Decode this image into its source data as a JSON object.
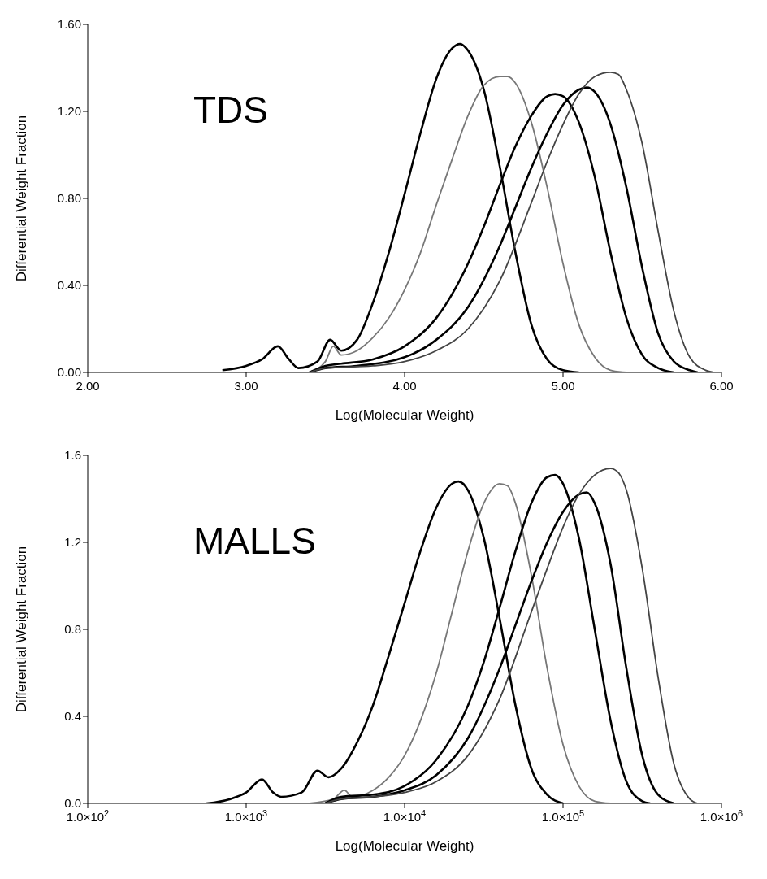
{
  "chart_data": [
    {
      "type": "line",
      "xlabel": "Log(Molecular Weight)",
      "ylabel": "Differential Weight Fraction",
      "annotations": [
        "TDS"
      ],
      "xlim": [
        2,
        6
      ],
      "ylim": [
        0,
        1.6
      ],
      "xticks": [
        {
          "value": 2,
          "label": "2.00"
        },
        {
          "value": 3,
          "label": "3.00"
        },
        {
          "value": 4,
          "label": "4.00"
        },
        {
          "value": 5,
          "label": "5.00"
        },
        {
          "value": 6,
          "label": "6.00"
        }
      ],
      "yticks": [
        {
          "value": 0,
          "label": "0.00"
        },
        {
          "value": 0.4,
          "label": "0.40"
        },
        {
          "value": 0.8,
          "label": "0.80"
        },
        {
          "value": 1.2,
          "label": "1.20"
        },
        {
          "value": 1.6,
          "label": "1.60"
        }
      ],
      "grid": false,
      "marker": "none",
      "line_style": "solid",
      "series": [
        {
          "color": "#000000",
          "x": [
            2.85,
            3.0,
            3.1,
            3.2,
            3.27,
            3.33,
            3.45,
            3.53,
            3.6,
            3.7,
            3.8,
            3.9,
            4.0,
            4.1,
            4.2,
            4.3,
            4.35,
            4.4,
            4.5,
            4.6,
            4.7,
            4.8,
            4.9,
            5.0,
            5.1
          ],
          "values": [
            0.01,
            0.03,
            0.06,
            0.12,
            0.06,
            0.02,
            0.05,
            0.15,
            0.1,
            0.15,
            0.32,
            0.55,
            0.82,
            1.1,
            1.35,
            1.49,
            1.51,
            1.48,
            1.3,
            0.95,
            0.55,
            0.22,
            0.06,
            0.01,
            0.0
          ]
        },
        {
          "color": "#777777",
          "x": [
            3.4,
            3.5,
            3.55,
            3.6,
            3.7,
            3.8,
            3.9,
            4.0,
            4.1,
            4.2,
            4.3,
            4.4,
            4.5,
            4.6,
            4.65,
            4.7,
            4.8,
            4.9,
            5.0,
            5.1,
            5.2,
            5.3,
            5.4
          ],
          "values": [
            0.0,
            0.05,
            0.12,
            0.08,
            0.1,
            0.16,
            0.25,
            0.38,
            0.55,
            0.77,
            0.98,
            1.18,
            1.32,
            1.36,
            1.36,
            1.33,
            1.15,
            0.85,
            0.5,
            0.22,
            0.07,
            0.01,
            0.0
          ]
        },
        {
          "color": "#000000",
          "x": [
            3.4,
            3.5,
            3.6,
            3.8,
            4.0,
            4.2,
            4.4,
            4.5,
            4.6,
            4.7,
            4.8,
            4.9,
            4.95,
            5.0,
            5.1,
            5.2,
            5.3,
            5.4,
            5.5,
            5.6,
            5.7
          ],
          "values": [
            0.0,
            0.03,
            0.04,
            0.06,
            0.12,
            0.25,
            0.5,
            0.67,
            0.86,
            1.04,
            1.18,
            1.27,
            1.28,
            1.27,
            1.15,
            0.9,
            0.55,
            0.25,
            0.08,
            0.02,
            0.0
          ]
        },
        {
          "color": "#000000",
          "x": [
            3.4,
            3.5,
            3.7,
            4.0,
            4.2,
            4.4,
            4.6,
            4.7,
            4.8,
            4.9,
            5.0,
            5.1,
            5.15,
            5.2,
            5.3,
            5.4,
            5.5,
            5.6,
            5.7,
            5.8,
            5.85
          ],
          "values": [
            0.0,
            0.02,
            0.03,
            0.07,
            0.15,
            0.3,
            0.58,
            0.76,
            0.94,
            1.1,
            1.23,
            1.3,
            1.31,
            1.29,
            1.14,
            0.85,
            0.48,
            0.18,
            0.05,
            0.01,
            0.0
          ]
        },
        {
          "color": "#444444",
          "x": [
            3.4,
            3.5,
            3.8,
            4.0,
            4.2,
            4.4,
            4.6,
            4.8,
            4.9,
            5.0,
            5.1,
            5.2,
            5.3,
            5.35,
            5.4,
            5.5,
            5.6,
            5.7,
            5.8,
            5.9,
            5.95
          ],
          "values": [
            0.0,
            0.02,
            0.03,
            0.05,
            0.1,
            0.2,
            0.42,
            0.78,
            0.97,
            1.14,
            1.28,
            1.36,
            1.38,
            1.37,
            1.3,
            1.05,
            0.65,
            0.28,
            0.07,
            0.01,
            0.0
          ]
        }
      ]
    },
    {
      "type": "line",
      "xlabel": "Log(Molecular Weight)",
      "ylabel": "Differential Weight Fraction",
      "annotations": [
        "MALLS"
      ],
      "log": "x",
      "xlim": [
        100,
        1000000
      ],
      "ylim": [
        0,
        1.6
      ],
      "xticks": [
        {
          "value": 100,
          "label": "1.0×10$^{2}$"
        },
        {
          "value": 1000,
          "label": "1.0×10$^{3}$"
        },
        {
          "value": 10000,
          "label": "1.0×10$^{4}$"
        },
        {
          "value": 100000,
          "label": "1.0×10$^{5}$"
        },
        {
          "value": 1000000,
          "label": "1.0×10$^{6}$"
        }
      ],
      "yticks": [
        {
          "value": 0,
          "label": "0.0"
        },
        {
          "value": 0.4,
          "label": "0.4"
        },
        {
          "value": 0.8,
          "label": "0.8"
        },
        {
          "value": 1.2,
          "label": "1.2"
        },
        {
          "value": 1.6,
          "label": "1.6"
        }
      ],
      "grid": false,
      "marker": "none",
      "line_style": "solid",
      "series": [
        {
          "color": "#000000",
          "x": [
            562,
            794,
            1000,
            1259,
            1479,
            1660,
            2239,
            2818,
            3311,
            3981,
            5012,
            6310,
            7943,
            10000,
            12589,
            15849,
            19953,
            21878,
            25119,
            31623,
            39811,
            50119,
            63096,
            79433,
            100000
          ],
          "values": [
            0.0,
            0.02,
            0.05,
            0.11,
            0.05,
            0.03,
            0.05,
            0.15,
            0.12,
            0.16,
            0.28,
            0.45,
            0.68,
            0.92,
            1.16,
            1.36,
            1.47,
            1.48,
            1.44,
            1.22,
            0.85,
            0.45,
            0.16,
            0.04,
            0.0
          ]
        },
        {
          "color": "#777777",
          "x": [
            2512,
            3548,
            4169,
            4677,
            6310,
            7943,
            10000,
            12589,
            15849,
            19953,
            25119,
            31623,
            39811,
            44668,
            50119,
            63096,
            79433,
            100000,
            125893,
            158489,
            199526
          ],
          "values": [
            0.0,
            0.02,
            0.06,
            0.03,
            0.06,
            0.12,
            0.22,
            0.38,
            0.6,
            0.88,
            1.16,
            1.38,
            1.47,
            1.46,
            1.38,
            1.05,
            0.62,
            0.27,
            0.08,
            0.01,
            0.0
          ]
        },
        {
          "color": "#000000",
          "x": [
            3162,
            3981,
            6310,
            10000,
            15849,
            25119,
            31623,
            39811,
            50119,
            63096,
            79433,
            89125,
            100000,
            125893,
            158489,
            199526,
            251189,
            316228,
            354813
          ],
          "values": [
            0.0,
            0.03,
            0.04,
            0.08,
            0.2,
            0.45,
            0.65,
            0.9,
            1.16,
            1.38,
            1.5,
            1.51,
            1.47,
            1.22,
            0.8,
            0.38,
            0.1,
            0.01,
            0.0
          ]
        },
        {
          "color": "#000000",
          "x": [
            3162,
            3981,
            6310,
            10000,
            15849,
            25119,
            39811,
            50119,
            63096,
            79433,
            100000,
            125893,
            141254,
            158489,
            199526,
            251189,
            316228,
            398107,
            501187
          ],
          "values": [
            0.0,
            0.02,
            0.03,
            0.06,
            0.13,
            0.3,
            0.62,
            0.82,
            1.02,
            1.2,
            1.34,
            1.42,
            1.43,
            1.38,
            1.1,
            0.62,
            0.22,
            0.04,
            0.0
          ]
        },
        {
          "color": "#444444",
          "x": [
            3162,
            3981,
            6310,
            10000,
            15849,
            25119,
            39811,
            63096,
            79433,
            100000,
            125893,
            158489,
            199526,
            223872,
            251189,
            316228,
            398107,
            501187,
            630957,
            707946
          ],
          "values": [
            0.0,
            0.02,
            0.03,
            0.05,
            0.1,
            0.22,
            0.48,
            0.88,
            1.08,
            1.27,
            1.42,
            1.51,
            1.54,
            1.52,
            1.44,
            1.08,
            0.58,
            0.18,
            0.02,
            0.0
          ]
        }
      ]
    }
  ]
}
